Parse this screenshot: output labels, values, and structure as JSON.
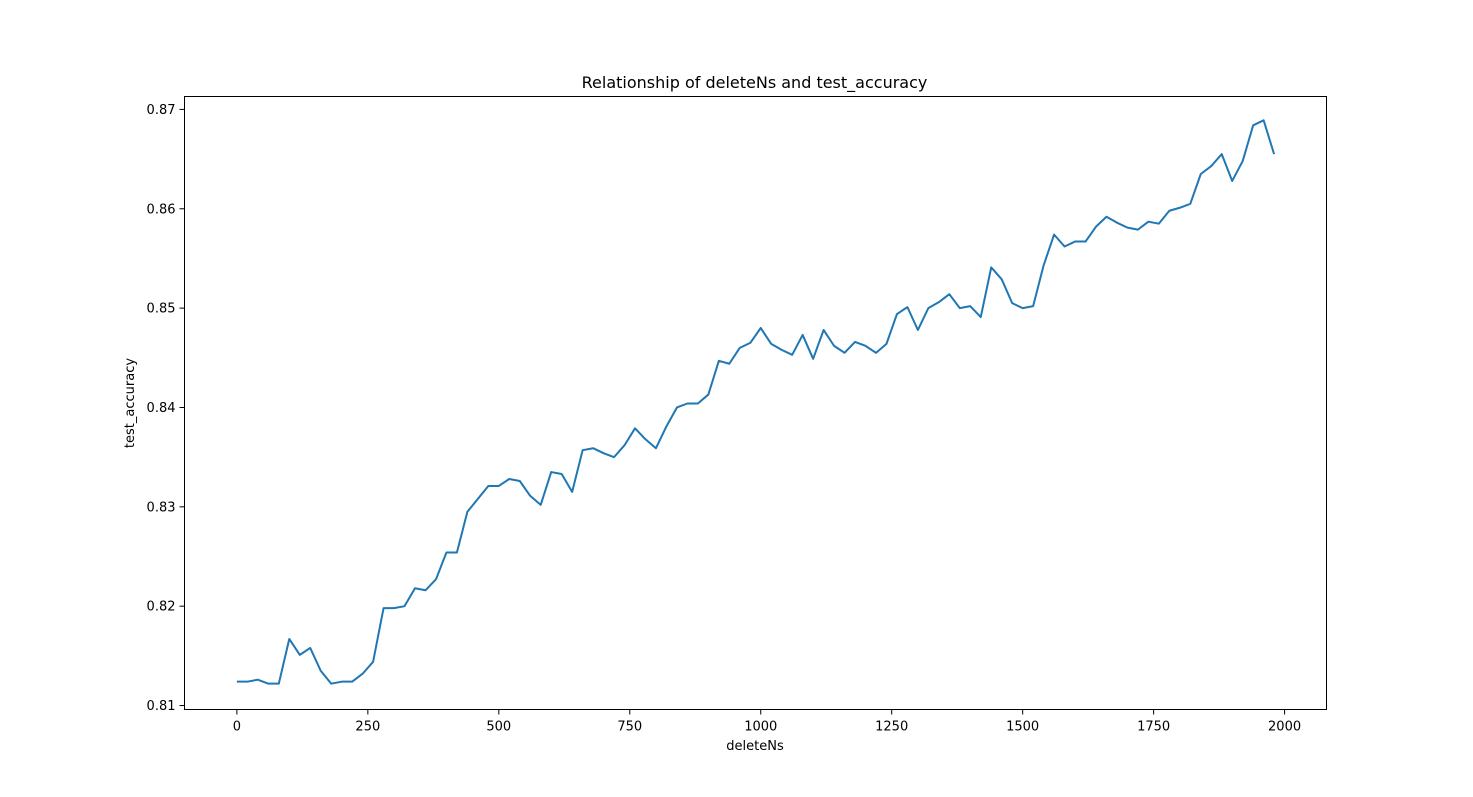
{
  "chart_data": {
    "type": "line",
    "title": "Relationship of deleteNs and test_accuracy",
    "xlabel": "deleteNs",
    "ylabel": "test_accuracy",
    "xlim": [
      -100,
      2080
    ],
    "ylim": [
      0.8096,
      0.8713
    ],
    "x_ticks": [
      0,
      250,
      500,
      750,
      1000,
      1250,
      1500,
      1750,
      2000
    ],
    "x_tick_labels": [
      "0",
      "250",
      "500",
      "750",
      "1000",
      "1250",
      "1500",
      "1750",
      "2000"
    ],
    "y_ticks": [
      0.81,
      0.82,
      0.83,
      0.84,
      0.85,
      0.86,
      0.87
    ],
    "y_tick_labels": [
      "0.81",
      "0.82",
      "0.83",
      "0.84",
      "0.85",
      "0.86",
      "0.87"
    ],
    "grid": false,
    "legend": null,
    "series": [
      {
        "color": "#1f77b4",
        "x": [
          0,
          20,
          40,
          60,
          80,
          100,
          120,
          140,
          160,
          180,
          200,
          220,
          240,
          260,
          280,
          300,
          320,
          340,
          360,
          380,
          400,
          420,
          440,
          460,
          480,
          500,
          520,
          540,
          560,
          580,
          600,
          620,
          640,
          660,
          680,
          700,
          720,
          740,
          760,
          780,
          800,
          820,
          840,
          860,
          880,
          900,
          920,
          940,
          960,
          980,
          1000,
          1020,
          1040,
          1060,
          1080,
          1100,
          1120,
          1140,
          1160,
          1180,
          1200,
          1220,
          1240,
          1260,
          1280,
          1300,
          1320,
          1340,
          1360,
          1380,
          1400,
          1420,
          1440,
          1460,
          1480,
          1500,
          1520,
          1540,
          1560,
          1580,
          1600,
          1620,
          1640,
          1660,
          1680,
          1700,
          1720,
          1740,
          1760,
          1780,
          1800,
          1820,
          1840,
          1860,
          1880,
          1900,
          1920,
          1940,
          1960,
          1980
        ],
        "y": [
          0.8124,
          0.8124,
          0.8126,
          0.8122,
          0.8122,
          0.8167,
          0.8151,
          0.8158,
          0.8135,
          0.8122,
          0.8124,
          0.8124,
          0.8132,
          0.8144,
          0.8198,
          0.8198,
          0.82,
          0.8218,
          0.8216,
          0.8227,
          0.8254,
          0.8254,
          0.8295,
          0.8308,
          0.8321,
          0.8321,
          0.8328,
          0.8326,
          0.8311,
          0.8302,
          0.8335,
          0.8333,
          0.8315,
          0.8357,
          0.8359,
          0.8354,
          0.835,
          0.8362,
          0.8379,
          0.8368,
          0.8359,
          0.8381,
          0.84,
          0.8404,
          0.8404,
          0.8413,
          0.8447,
          0.8444,
          0.846,
          0.8465,
          0.848,
          0.8464,
          0.8458,
          0.8453,
          0.8473,
          0.8449,
          0.8478,
          0.8462,
          0.8455,
          0.8466,
          0.8462,
          0.8455,
          0.8464,
          0.8494,
          0.8501,
          0.8478,
          0.85,
          0.8506,
          0.8514,
          0.85,
          0.8502,
          0.8491,
          0.8541,
          0.8529,
          0.8505,
          0.85,
          0.8502,
          0.8543,
          0.8574,
          0.8562,
          0.8567,
          0.8567,
          0.8582,
          0.8592,
          0.8586,
          0.8581,
          0.8579,
          0.8587,
          0.8585,
          0.8598,
          0.8601,
          0.8605,
          0.8635,
          0.8643,
          0.8655,
          0.8628,
          0.8648,
          0.8684,
          0.8689,
          0.8655
        ]
      }
    ]
  }
}
